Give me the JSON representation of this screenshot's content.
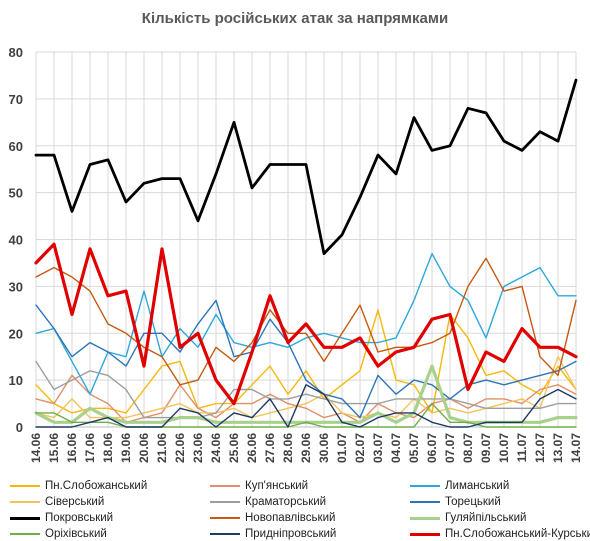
{
  "chart_data": {
    "type": "line",
    "title": "Кількість російських атак за напрямками",
    "xlabel": "",
    "ylabel": "",
    "ylim": [
      0,
      80
    ],
    "yticks": [
      0,
      10,
      20,
      30,
      40,
      50,
      60,
      70,
      80
    ],
    "grid": true,
    "legend_position": "bottom",
    "categories": [
      "14.06",
      "15.06",
      "16.06",
      "17.06",
      "18.06",
      "19.06",
      "20.06",
      "21.06",
      "22.06",
      "23.06",
      "24.06",
      "25.06",
      "26.06",
      "27.06",
      "28.06",
      "29.06",
      "30.06",
      "01.07",
      "02.07",
      "03.07",
      "04.07",
      "05.07",
      "06.07",
      "07.07",
      "08.07",
      "09.07",
      "10.07",
      "11.07",
      "12.07",
      "13.07",
      "14.07"
    ],
    "series": [
      {
        "name": "Пн.Слобожанський",
        "color": "#F5B90A",
        "width": 1.4,
        "values": [
          9,
          5,
          3,
          4,
          4,
          3,
          8,
          13,
          14,
          4,
          5,
          5,
          9,
          13,
          7,
          12,
          6,
          9,
          12,
          25,
          10,
          9,
          3,
          24,
          19,
          11,
          12,
          9,
          7,
          13,
          8
        ]
      },
      {
        "name": "Куп'янський",
        "color": "#E08F6A",
        "width": 1.4,
        "values": [
          6,
          5,
          11,
          7,
          5,
          1,
          2,
          3,
          9,
          4,
          2,
          5,
          5,
          7,
          5,
          4,
          2,
          3,
          1,
          5,
          3,
          2,
          5,
          6,
          4,
          6,
          6,
          5,
          8,
          9,
          7
        ]
      },
      {
        "name": "Лиманський",
        "color": "#2EA8D8",
        "width": 1.4,
        "values": [
          20,
          21,
          14,
          7,
          16,
          15,
          29,
          15,
          21,
          17,
          24,
          18,
          17,
          18,
          17,
          19,
          20,
          19,
          18,
          18,
          19,
          27,
          37,
          30,
          27,
          19,
          30,
          32,
          34,
          28,
          28
        ]
      },
      {
        "name": "Сіверський",
        "color": "#F4C35A",
        "width": 1.4,
        "values": [
          3,
          2,
          6,
          2,
          2,
          2,
          3,
          4,
          5,
          3,
          3,
          4,
          2,
          3,
          4,
          5,
          7,
          3,
          2,
          3,
          2,
          6,
          3,
          4,
          3,
          4,
          5,
          6,
          4,
          15,
          8
        ]
      },
      {
        "name": "Краматорський",
        "color": "#9E9E9E",
        "width": 1.4,
        "values": [
          14,
          8,
          10,
          12,
          11,
          8,
          2,
          2,
          2,
          2,
          3,
          8,
          8,
          6,
          6,
          7,
          6,
          5,
          5,
          5,
          6,
          6,
          6,
          6,
          5,
          4,
          4,
          4,
          4,
          5,
          5
        ]
      },
      {
        "name": "Торецький",
        "color": "#2E75B6",
        "width": 1.4,
        "values": [
          26,
          21,
          15,
          18,
          16,
          13,
          20,
          20,
          16,
          22,
          27,
          15,
          16,
          23,
          18,
          10,
          7,
          6,
          2,
          11,
          7,
          10,
          9,
          6,
          9,
          10,
          9,
          10,
          11,
          12,
          14
        ]
      },
      {
        "name": "Покровський",
        "color": "#000000",
        "width": 2.8,
        "values": [
          58,
          58,
          46,
          56,
          57,
          48,
          52,
          53,
          53,
          44,
          54,
          65,
          51,
          56,
          56,
          56,
          37,
          41,
          49,
          58,
          54,
          66,
          59,
          60,
          68,
          67,
          61,
          59,
          63,
          61,
          74
        ]
      },
      {
        "name": "Новопавлівський",
        "color": "#C55A11",
        "width": 1.4,
        "values": [
          32,
          34,
          32,
          29,
          22,
          20,
          17,
          15,
          9,
          10,
          17,
          14,
          18,
          25,
          20,
          20,
          14,
          20,
          26,
          16,
          17,
          17,
          18,
          20,
          30,
          36,
          29,
          30,
          15,
          11,
          27
        ]
      },
      {
        "name": "Гуляйпільський",
        "color": "#A9D18E",
        "width": 3.2,
        "values": [
          3,
          1,
          1,
          4,
          2,
          1,
          1,
          1,
          2,
          2,
          1,
          1,
          1,
          1,
          1,
          1,
          1,
          1,
          1,
          3,
          1,
          3,
          13,
          2,
          1,
          1,
          1,
          1,
          1,
          2,
          2
        ]
      },
      {
        "name": "Оріхівський",
        "color": "#70AD47",
        "width": 1.4,
        "values": [
          3,
          3,
          1,
          1,
          1,
          0,
          0,
          0,
          0,
          0,
          0,
          0,
          0,
          0,
          0,
          1,
          0,
          0,
          0,
          0,
          0,
          0,
          5,
          1,
          1,
          0,
          0,
          0,
          0,
          0,
          0
        ]
      },
      {
        "name": "Придніпровський",
        "color": "#1F3864",
        "width": 1.4,
        "values": [
          0,
          0,
          0,
          1,
          2,
          0,
          0,
          0,
          4,
          3,
          0,
          3,
          2,
          6,
          0,
          9,
          7,
          1,
          0,
          2,
          3,
          3,
          1,
          0,
          0,
          1,
          1,
          1,
          6,
          8,
          6
        ]
      },
      {
        "name": "Пн.Слобожанський-Курський",
        "color": "#E00000",
        "width": 3.2,
        "values": [
          35,
          39,
          24,
          38,
          28,
          29,
          13,
          38,
          17,
          20,
          10,
          5,
          16,
          28,
          18,
          22,
          17,
          17,
          19,
          13,
          16,
          17,
          23,
          24,
          8,
          16,
          14,
          21,
          17,
          17,
          15
        ]
      }
    ]
  }
}
